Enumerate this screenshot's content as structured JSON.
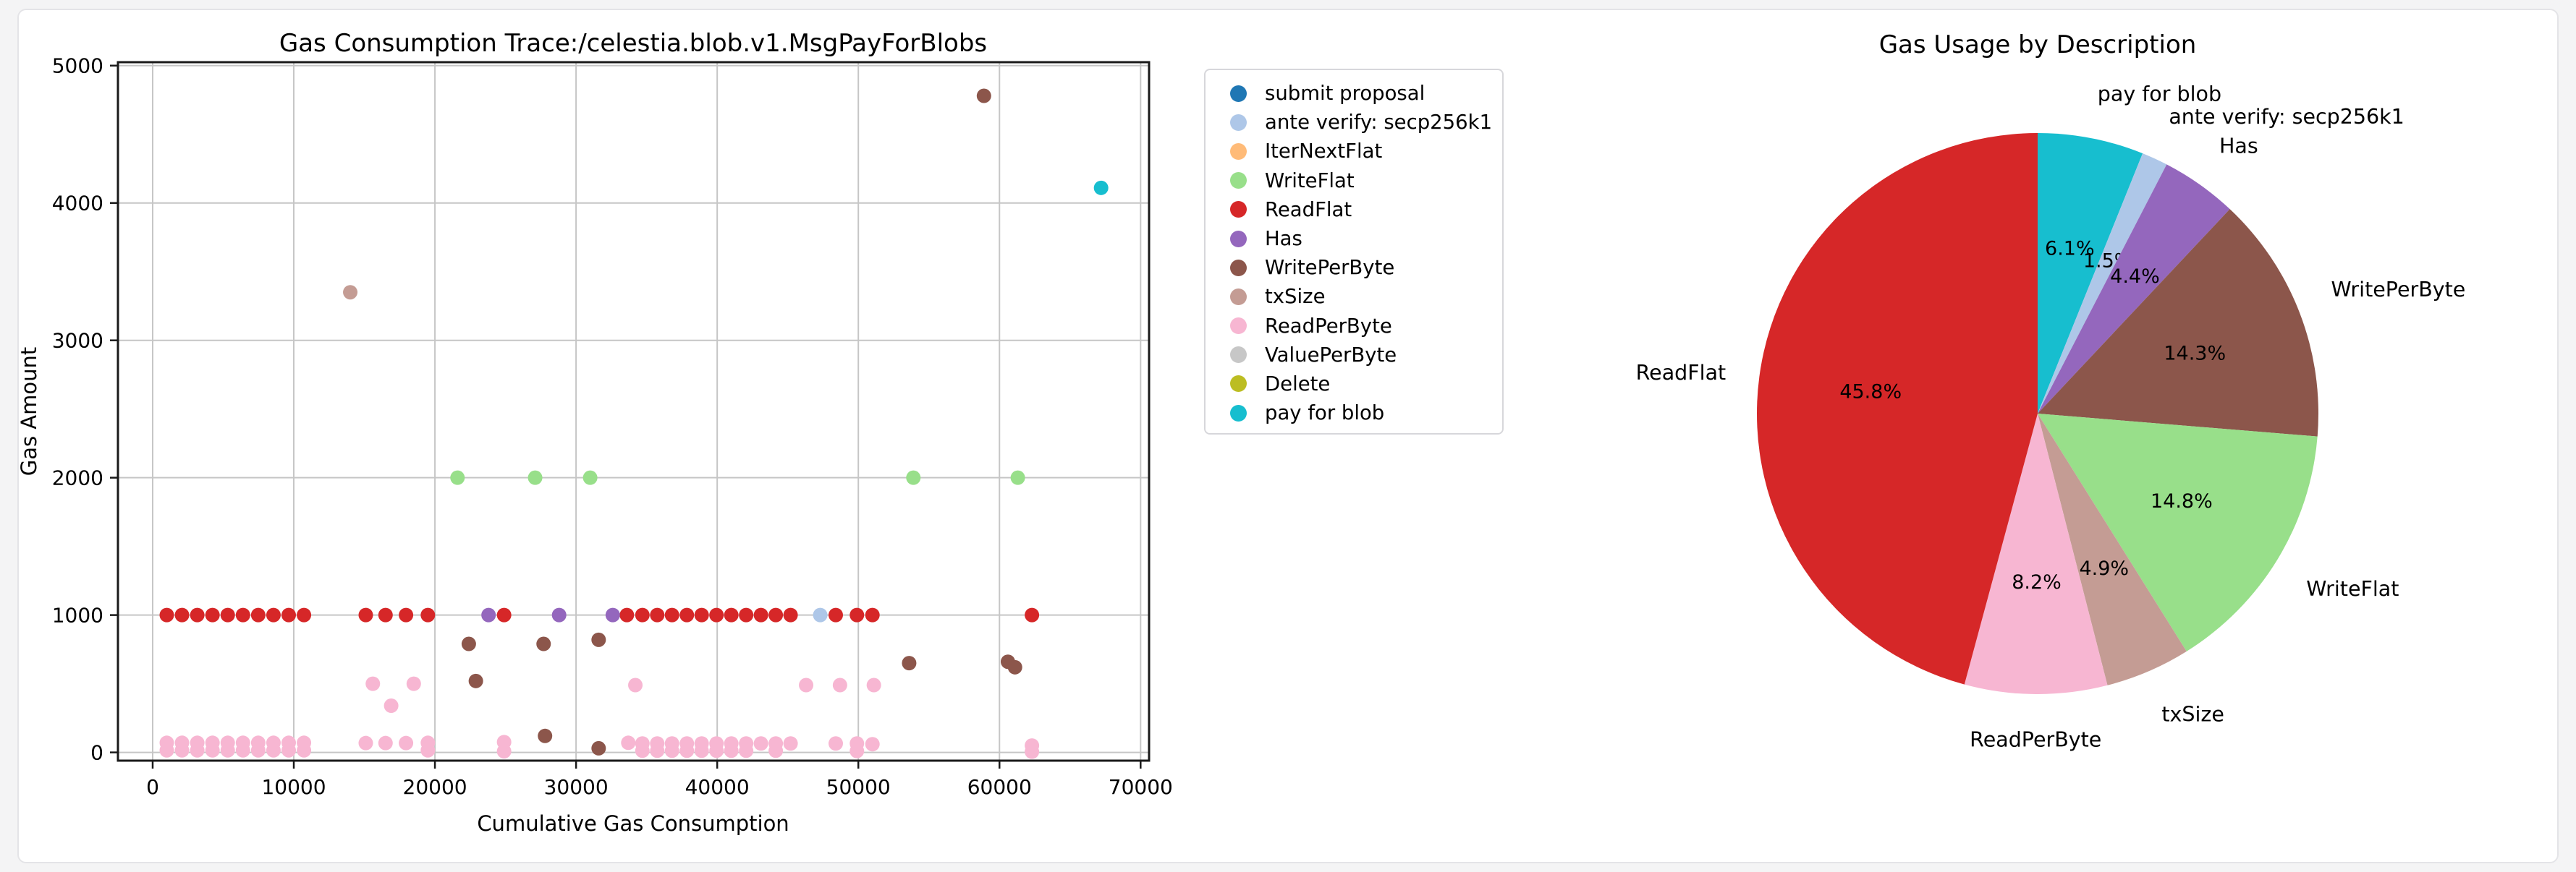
{
  "page": {
    "background": "#f4f4f5",
    "card_background": "#ffffff",
    "card_border": "#e4e4e7",
    "grid_color": "#c6c6c6",
    "spine_color": "#1a1a1a",
    "text_color": "#000000"
  },
  "chart_data": [
    {
      "type": "scatter",
      "title": "Gas Consumption Trace:/celestia.blob.v1.MsgPayForBlobs",
      "xlabel": "Cumulative Gas Consumption",
      "ylabel": "Gas Amount",
      "xlim": [
        -2460,
        70600
      ],
      "ylim": [
        -60,
        5025
      ],
      "xticks": [
        0,
        10000,
        20000,
        30000,
        40000,
        50000,
        60000,
        70000
      ],
      "yticks": [
        0,
        1000,
        2000,
        3000,
        4000,
        5000
      ],
      "grid": true,
      "legend_position": "outside-right",
      "series": [
        {
          "name": "submit proposal",
          "color": "#1f77b4",
          "points": []
        },
        {
          "name": "ante verify: secp256k1",
          "color": "#aec7e8",
          "points": [
            [
              47300,
              1000
            ]
          ]
        },
        {
          "name": "IterNextFlat",
          "color": "#ffbb78",
          "points": []
        },
        {
          "name": "WriteFlat",
          "color": "#98df8a",
          "points": [
            [
              21600,
              2000
            ],
            [
              27100,
              2000
            ],
            [
              31000,
              2000
            ],
            [
              53900,
              2000
            ],
            [
              61300,
              2000
            ]
          ]
        },
        {
          "name": "ReadFlat",
          "color": "#d62728",
          "points": [
            [
              1000,
              1000
            ],
            [
              2080,
              1000
            ],
            [
              3160,
              1000
            ],
            [
              4240,
              1000
            ],
            [
              5320,
              1000
            ],
            [
              6400,
              1000
            ],
            [
              7480,
              1000
            ],
            [
              8560,
              1000
            ],
            [
              9640,
              1000
            ],
            [
              10720,
              1000
            ],
            [
              15100,
              1000
            ],
            [
              16500,
              1000
            ],
            [
              17950,
              1000
            ],
            [
              19500,
              1000
            ],
            [
              24900,
              1000
            ],
            [
              33600,
              1000
            ],
            [
              34700,
              1000
            ],
            [
              35750,
              1000
            ],
            [
              36800,
              1000
            ],
            [
              37850,
              1000
            ],
            [
              38900,
              1000
            ],
            [
              39950,
              1000
            ],
            [
              41000,
              1000
            ],
            [
              42050,
              1000
            ],
            [
              43100,
              1000
            ],
            [
              44150,
              1000
            ],
            [
              45200,
              1000
            ],
            [
              48400,
              1000
            ],
            [
              49900,
              1000
            ],
            [
              51000,
              1000
            ],
            [
              62300,
              1000
            ]
          ]
        },
        {
          "name": "Has",
          "color": "#9467bd",
          "points": [
            [
              23800,
              1000
            ],
            [
              28800,
              1000
            ],
            [
              32600,
              1000
            ]
          ]
        },
        {
          "name": "WritePerByte",
          "color": "#8c564b",
          "points": [
            [
              22400,
              790
            ],
            [
              22900,
              520
            ],
            [
              27700,
              790
            ],
            [
              27800,
              120
            ],
            [
              31600,
              820
            ],
            [
              31600,
              30
            ],
            [
              53600,
              650
            ],
            [
              58900,
              4780
            ],
            [
              60600,
              660
            ],
            [
              61100,
              620
            ]
          ]
        },
        {
          "name": "txSize",
          "color": "#c49c94",
          "points": [
            [
              14000,
              3350
            ]
          ]
        },
        {
          "name": "ReadPerByte",
          "color": "#f7b6d2",
          "points": [
            [
              1000,
              70
            ],
            [
              1000,
              15
            ],
            [
              2080,
              70
            ],
            [
              2080,
              15
            ],
            [
              3160,
              70
            ],
            [
              3160,
              15
            ],
            [
              4240,
              70
            ],
            [
              4240,
              15
            ],
            [
              5320,
              70
            ],
            [
              5320,
              15
            ],
            [
              6400,
              70
            ],
            [
              6400,
              15
            ],
            [
              7480,
              70
            ],
            [
              7480,
              15
            ],
            [
              8560,
              70
            ],
            [
              8560,
              15
            ],
            [
              9640,
              70
            ],
            [
              9640,
              15
            ],
            [
              10720,
              70
            ],
            [
              10720,
              15
            ],
            [
              15100,
              68
            ],
            [
              15600,
              500
            ],
            [
              16500,
              68
            ],
            [
              16900,
              340
            ],
            [
              17950,
              68
            ],
            [
              18500,
              500
            ],
            [
              19500,
              70
            ],
            [
              19500,
              15
            ],
            [
              24900,
              75
            ],
            [
              24900,
              8
            ],
            [
              33700,
              70
            ],
            [
              34200,
              490
            ],
            [
              34700,
              65
            ],
            [
              34700,
              12
            ],
            [
              35750,
              65
            ],
            [
              35750,
              12
            ],
            [
              36800,
              65
            ],
            [
              36800,
              12
            ],
            [
              37850,
              65
            ],
            [
              37850,
              12
            ],
            [
              38900,
              65
            ],
            [
              38900,
              12
            ],
            [
              39950,
              65
            ],
            [
              39950,
              12
            ],
            [
              41000,
              65
            ],
            [
              41000,
              12
            ],
            [
              42050,
              65
            ],
            [
              42050,
              12
            ],
            [
              43100,
              65
            ],
            [
              44150,
              65
            ],
            [
              44150,
              12
            ],
            [
              45200,
              65
            ],
            [
              46300,
              490
            ],
            [
              48400,
              65
            ],
            [
              48700,
              490
            ],
            [
              49900,
              65
            ],
            [
              49900,
              10
            ],
            [
              51000,
              60
            ],
            [
              51100,
              490
            ],
            [
              62300,
              50
            ],
            [
              62300,
              5
            ]
          ]
        },
        {
          "name": "ValuePerByte",
          "color": "#c7c7c7",
          "points": []
        },
        {
          "name": "Delete",
          "color": "#bcbd22",
          "points": []
        },
        {
          "name": "pay for blob",
          "color": "#17becf",
          "points": [
            [
              67200,
              4110
            ]
          ]
        }
      ]
    },
    {
      "type": "pie",
      "title": "Gas Usage by Description",
      "start_angle_deg": 90,
      "clockwise": true,
      "slices": [
        {
          "label": "pay for blob",
          "pct": 6.1,
          "color": "#17becf"
        },
        {
          "label": "ante verify: secp256k1",
          "pct": 1.5,
          "color": "#aec7e8"
        },
        {
          "label": "Has",
          "pct": 4.4,
          "color": "#9467bd"
        },
        {
          "label": "WritePerByte",
          "pct": 14.3,
          "color": "#8c564b"
        },
        {
          "label": "WriteFlat",
          "pct": 14.8,
          "color": "#98df8a"
        },
        {
          "label": "txSize",
          "pct": 4.9,
          "color": "#c49c94"
        },
        {
          "label": "ReadPerByte",
          "pct": 8.2,
          "color": "#f7b6d2"
        },
        {
          "label": "ReadFlat",
          "pct": 45.8,
          "color": "#d62728"
        }
      ]
    }
  ]
}
